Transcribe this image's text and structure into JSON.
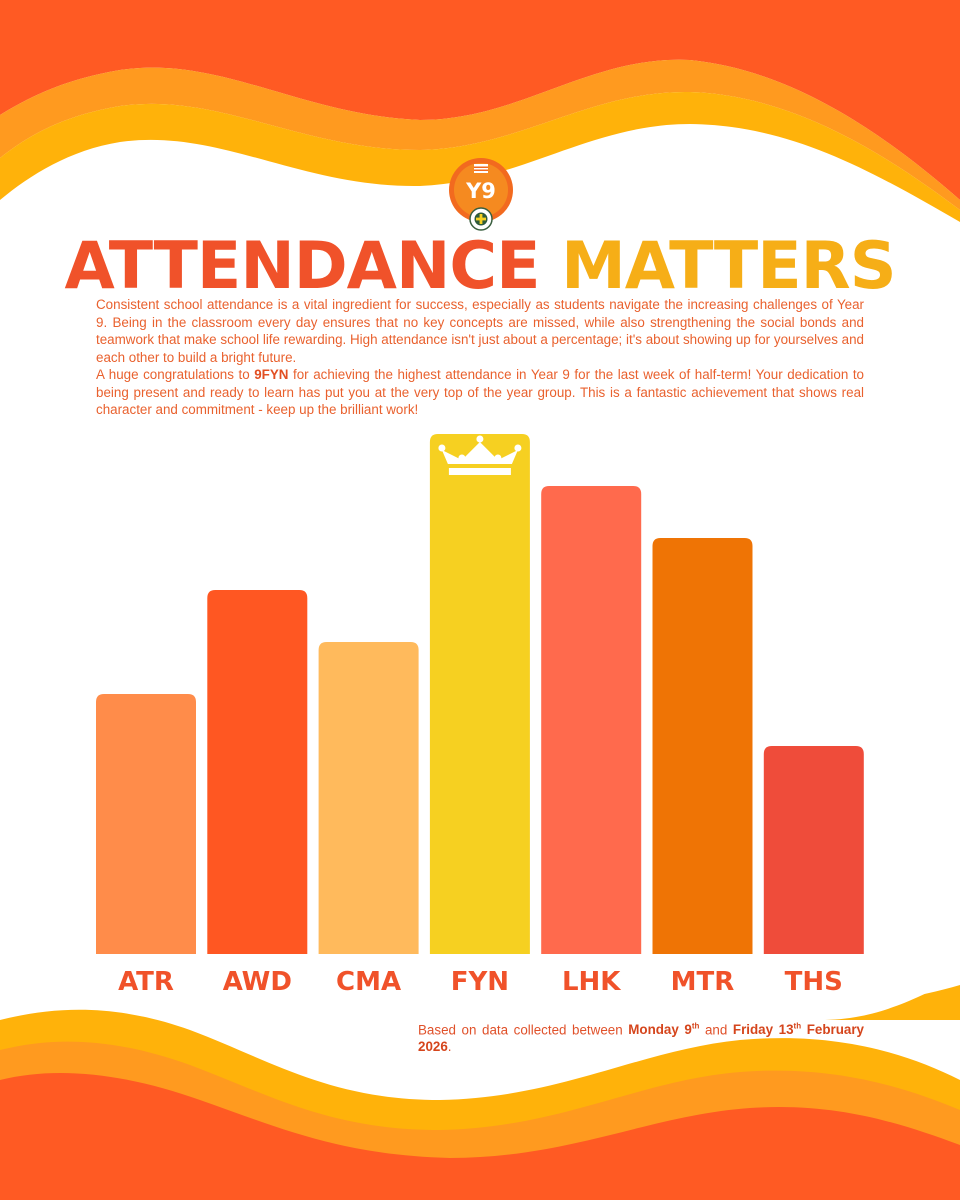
{
  "logo": {
    "badge_text": "Y9"
  },
  "headline": {
    "word1": "ATTENDANCE",
    "word2": "MATTERS"
  },
  "intro": {
    "paragraph1": "Consistent school attendance is a vital ingredient for success, especially as students navigate the increasing challenges of Year 9. Being in the classroom every day ensures that no key concepts are missed, while also strengthening the social bonds and teamwork that make school life rewarding. High attendance isn't just about a percentage; it's about showing up for yourselves and each other to build a bright future.",
    "p2_before": "A huge congratulations to ",
    "p2_form": "9FYN",
    "p2_after": " for achieving the highest attendance in Year 9 for the last week of half-term! Your dedication to being present and ready to learn has put you at the very top of the year group. This is a fantastic achievement that shows real character and commitment - keep up the brilliant work!"
  },
  "chart_data": {
    "type": "bar",
    "title": "",
    "xlabel": "",
    "ylabel": "",
    "categories": [
      "ATR",
      "AWD",
      "CMA",
      "FYN",
      "LHK",
      "MTR",
      "THS"
    ],
    "values": [
      5,
      7,
      6,
      10,
      9,
      8,
      4
    ],
    "value_note": "relative heights only, no axis or values printed",
    "colors": [
      "#FF8C4A",
      "#FF5722",
      "#FFBA5C",
      "#F6D021",
      "#FF6A4D",
      "#EF7405",
      "#EF4C3A"
    ],
    "highlight": {
      "category": "FYN",
      "icon": "crown-icon"
    },
    "grid": false,
    "legend": "none"
  },
  "footnote": {
    "before": "Based on data collected between ",
    "start_day": "Monday 9",
    "start_sup": "th",
    "middle": " and ",
    "end_day": "Friday 13",
    "end_sup": "th",
    "end_month": "February 2026",
    "after": "."
  },
  "colors": {
    "primary_orange": "#F0522A",
    "accent_gold": "#F6AE17",
    "wave_dark": "#FF5A23",
    "wave_mid": "#FF9A1F",
    "wave_light": "#FFB20A"
  }
}
